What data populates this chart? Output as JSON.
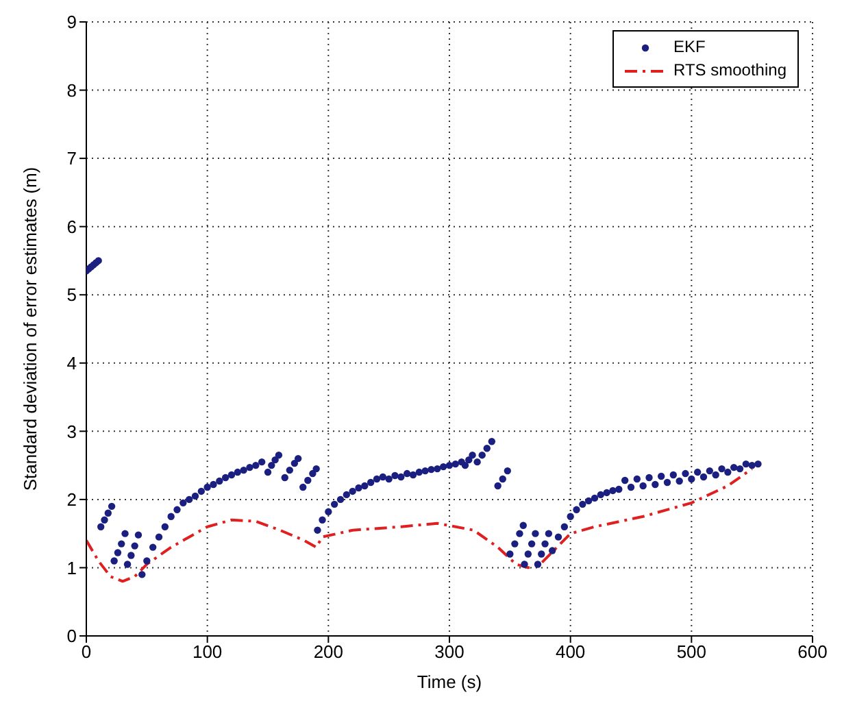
{
  "chart_data": {
    "type": "line",
    "xlabel": "Time (s)",
    "ylabel": "Standard deviation of error estimates (m)",
    "xlim": [
      0,
      600
    ],
    "ylim": [
      0,
      9
    ],
    "xticks": [
      0,
      100,
      200,
      300,
      400,
      500,
      600
    ],
    "yticks": [
      0,
      1,
      2,
      3,
      4,
      5,
      6,
      7,
      8,
      9
    ],
    "grid": true,
    "legend": "top right",
    "series": [
      {
        "name": "EKF",
        "type": "scatter",
        "marker": "circle",
        "color": "#1a1f80",
        "x": [
          0,
          2,
          4,
          6,
          8,
          10,
          12,
          15,
          18,
          21,
          23,
          26,
          29,
          32,
          34,
          37,
          40,
          43,
          46,
          50,
          55,
          60,
          65,
          70,
          75,
          80,
          85,
          90,
          95,
          100,
          105,
          110,
          115,
          120,
          125,
          130,
          135,
          140,
          145,
          150,
          153,
          156,
          159,
          164,
          168,
          172,
          175,
          179,
          183,
          187,
          190,
          191,
          195,
          200,
          205,
          210,
          215,
          220,
          225,
          230,
          235,
          240,
          245,
          250,
          255,
          260,
          265,
          270,
          275,
          280,
          285,
          290,
          295,
          300,
          305,
          310,
          313,
          316,
          319,
          323,
          327,
          331,
          335,
          340,
          344,
          348,
          350,
          354,
          358,
          361,
          362,
          365,
          368,
          371,
          373,
          376,
          379,
          382,
          385,
          390,
          395,
          400,
          405,
          410,
          415,
          420,
          425,
          430,
          435,
          440,
          445,
          450,
          455,
          460,
          465,
          470,
          475,
          480,
          485,
          490,
          495,
          500,
          505,
          510,
          515,
          520,
          525,
          530,
          535,
          540,
          545,
          550,
          555
        ],
        "values": [
          5.35,
          5.38,
          5.41,
          5.44,
          5.47,
          5.5,
          1.6,
          1.7,
          1.8,
          1.9,
          1.1,
          1.22,
          1.35,
          1.5,
          1.05,
          1.18,
          1.32,
          1.48,
          0.9,
          1.1,
          1.3,
          1.45,
          1.6,
          1.75,
          1.85,
          1.95,
          2.0,
          2.05,
          2.12,
          2.18,
          2.22,
          2.27,
          2.32,
          2.36,
          2.4,
          2.43,
          2.47,
          2.5,
          2.55,
          2.4,
          2.5,
          2.58,
          2.65,
          2.32,
          2.43,
          2.53,
          2.6,
          2.18,
          2.28,
          2.38,
          2.45,
          1.55,
          1.7,
          1.82,
          1.93,
          2.0,
          2.07,
          2.12,
          2.17,
          2.2,
          2.25,
          2.3,
          2.33,
          2.3,
          2.35,
          2.33,
          2.38,
          2.36,
          2.4,
          2.42,
          2.44,
          2.45,
          2.48,
          2.5,
          2.52,
          2.55,
          2.5,
          2.58,
          2.65,
          2.55,
          2.65,
          2.75,
          2.85,
          2.2,
          2.3,
          2.42,
          1.2,
          1.35,
          1.5,
          1.62,
          1.05,
          1.2,
          1.35,
          1.5,
          1.05,
          1.2,
          1.35,
          1.5,
          1.25,
          1.45,
          1.6,
          1.75,
          1.85,
          1.93,
          1.98,
          2.02,
          2.07,
          2.1,
          2.13,
          2.15,
          2.28,
          2.18,
          2.3,
          2.2,
          2.32,
          2.22,
          2.34,
          2.25,
          2.36,
          2.27,
          2.38,
          2.3,
          2.4,
          2.33,
          2.42,
          2.36,
          2.45,
          2.4,
          2.47,
          2.45,
          2.52,
          2.5,
          2.52
        ]
      },
      {
        "name": "RTS smoothing",
        "marker": "none",
        "line_style": "dashed",
        "color": "#e02020",
        "x": [
          0,
          10,
          20,
          30,
          40,
          50,
          70,
          100,
          120,
          140,
          160,
          180,
          190,
          195,
          220,
          260,
          290,
          320,
          340,
          355,
          365,
          375,
          400,
          420,
          460,
          500,
          530,
          550
        ],
        "values": [
          1.4,
          1.1,
          0.87,
          0.8,
          0.87,
          1.05,
          1.3,
          1.6,
          1.7,
          1.68,
          1.55,
          1.4,
          1.3,
          1.45,
          1.55,
          1.6,
          1.65,
          1.55,
          1.3,
          1.05,
          1.0,
          1.05,
          1.5,
          1.6,
          1.75,
          1.95,
          2.2,
          2.45
        ]
      }
    ]
  }
}
